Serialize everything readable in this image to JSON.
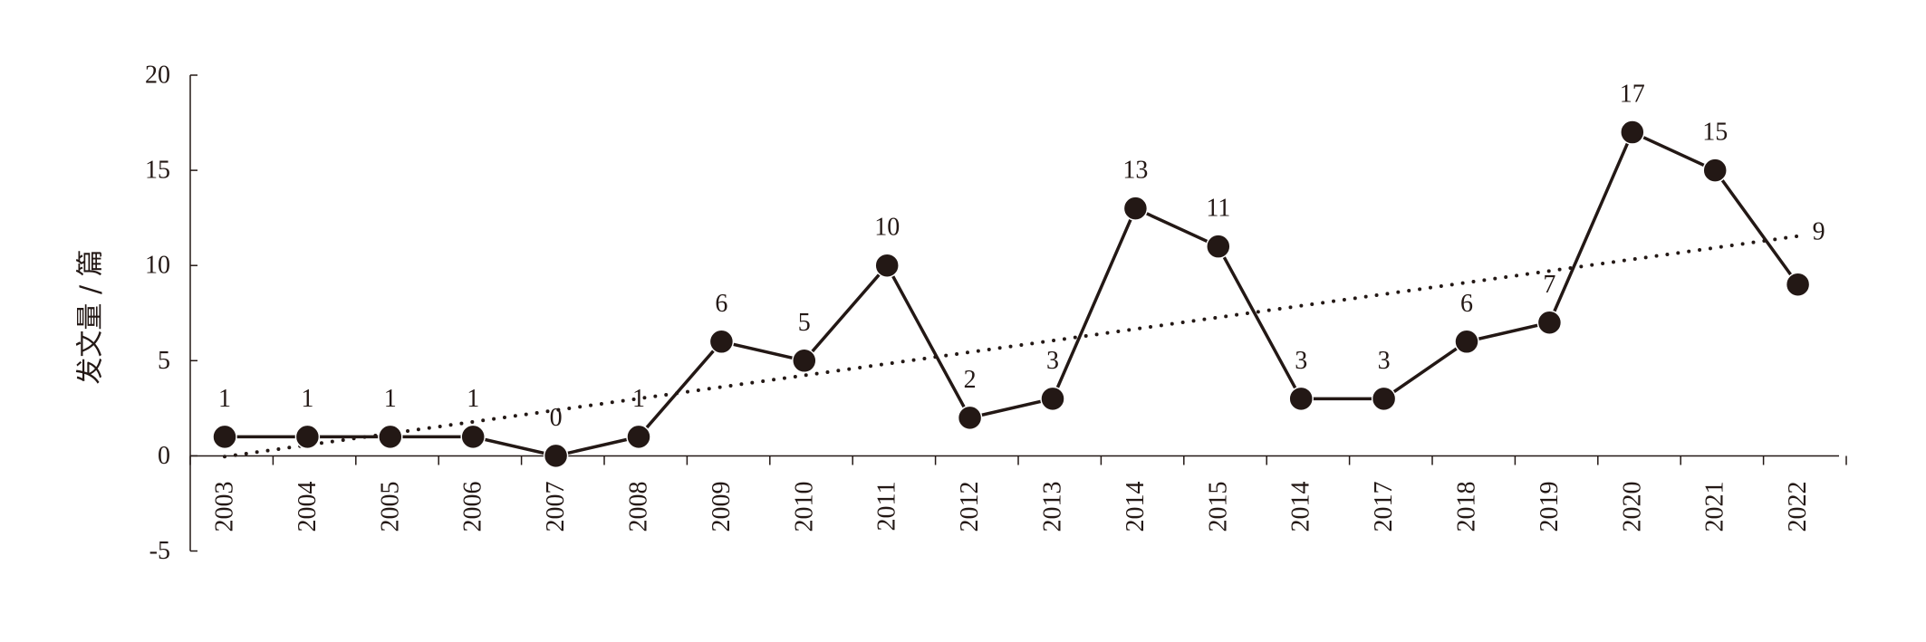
{
  "chart_data": {
    "type": "line",
    "ylabel": "发文量 / 篇",
    "xlabel": "",
    "ylim": [
      -5,
      20
    ],
    "yticks": [
      -5,
      0,
      5,
      10,
      15,
      20
    ],
    "grid": false,
    "categories": [
      "2003",
      "2004",
      "2005",
      "2006",
      "2007",
      "2008",
      "2009",
      "2010",
      "2011",
      "2012",
      "2013",
      "2014",
      "2015",
      "2014",
      "2017",
      "2018",
      "2019",
      "2020",
      "2021",
      "2022"
    ],
    "series": [
      {
        "values": [
          1,
          1,
          1,
          1,
          0,
          1,
          6,
          5,
          10,
          2,
          3,
          13,
          11,
          3,
          3,
          6,
          7,
          17,
          15,
          9
        ]
      }
    ],
    "data_labels": [
      "1",
      "1",
      "1",
      "1",
      "0",
      "1",
      "6",
      "5",
      "10",
      "2",
      "3",
      "13",
      "11",
      "3",
      "3",
      "6",
      "7",
      "17",
      "15",
      "9"
    ],
    "trendline": {
      "style": "dotted",
      "type": "linear"
    },
    "colors": {
      "line": "#231815",
      "marker": "#231815",
      "axis": "#231815"
    }
  }
}
